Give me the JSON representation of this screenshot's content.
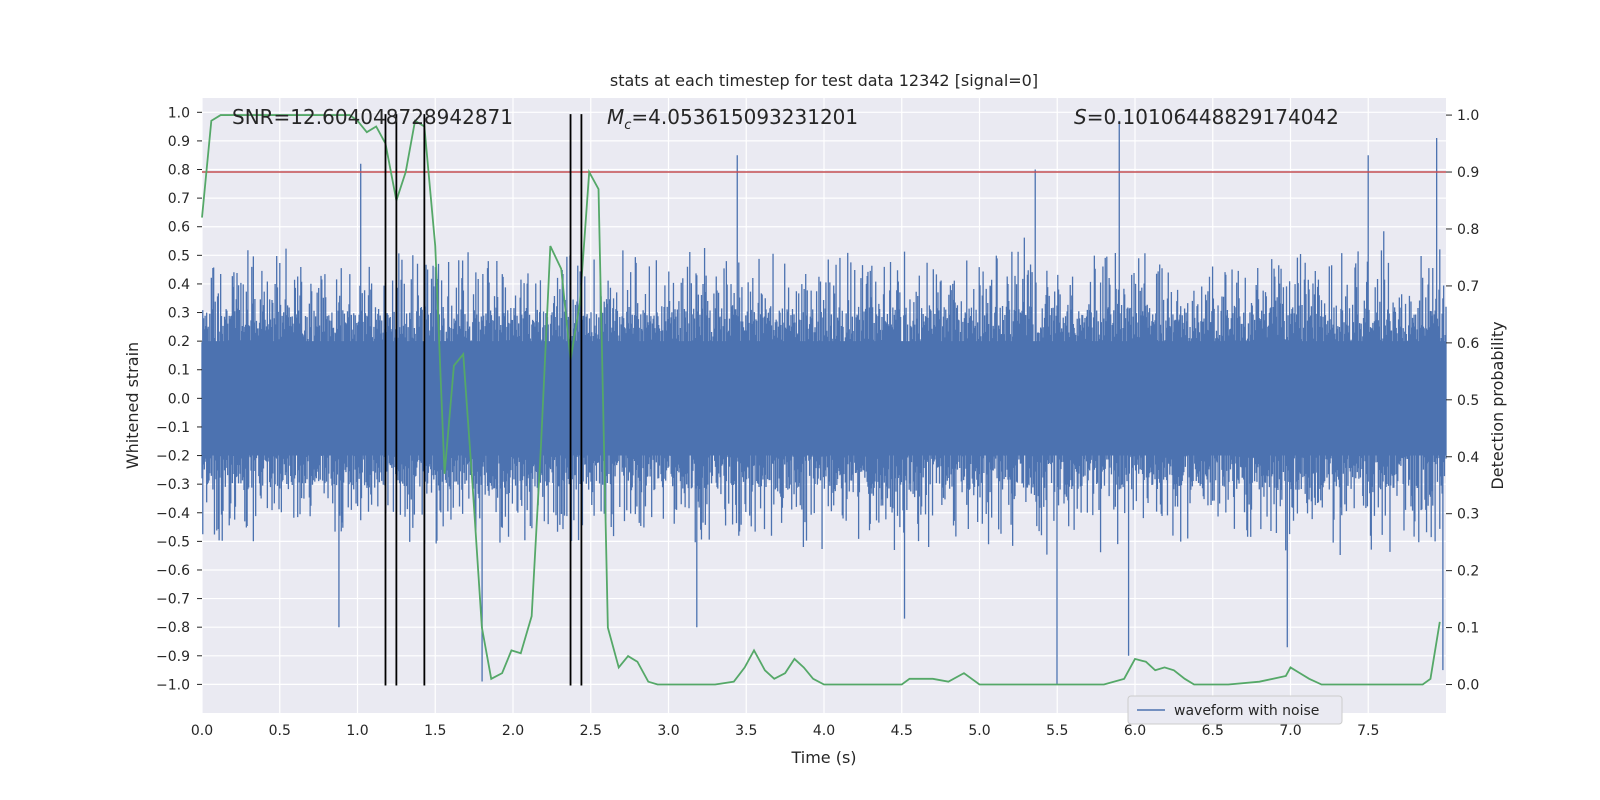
{
  "chart_data": {
    "type": "line",
    "title": "stats at each timestep for test data 12342 [signal=0]",
    "xlabel": "Time (s)",
    "ylabel_left": "Whitened strain",
    "ylabel_right": "Detection probability",
    "xlim": [
      0.0,
      8.0
    ],
    "ylim_left": [
      -1.1,
      1.05
    ],
    "ylim_right": [
      -0.05,
      1.03
    ],
    "grid": true,
    "x_ticks": [
      "0.0",
      "0.5",
      "1.0",
      "1.5",
      "2.0",
      "2.5",
      "3.0",
      "3.5",
      "4.0",
      "4.5",
      "5.0",
      "5.5",
      "6.0",
      "6.5",
      "7.0",
      "7.5"
    ],
    "x_tick_values": [
      0.0,
      0.5,
      1.0,
      1.5,
      2.0,
      2.5,
      3.0,
      3.5,
      4.0,
      4.5,
      5.0,
      5.5,
      6.0,
      6.5,
      7.0,
      7.5
    ],
    "y_left_ticks": [
      "1.0",
      "0.9",
      "0.8",
      "0.7",
      "0.6",
      "0.5",
      "0.4",
      "0.3",
      "0.2",
      "0.1",
      "0.0",
      "-0.1",
      "-0.2",
      "-0.3",
      "-0.4",
      "-0.5",
      "-0.6",
      "-0.7",
      "-0.8",
      "-0.9",
      "-1.0"
    ],
    "y_left_tick_values": [
      1.0,
      0.9,
      0.8,
      0.7,
      0.6,
      0.5,
      0.4,
      0.3,
      0.2,
      0.1,
      0.0,
      -0.1,
      -0.2,
      -0.3,
      -0.4,
      -0.5,
      -0.6,
      -0.7,
      -0.8,
      -0.9,
      -1.0
    ],
    "y_left_tick_labels_display": [
      "1.0",
      "0.9",
      "0.8",
      "0.7",
      "0.6",
      "0.5",
      "0.4",
      "0.3",
      "0.2",
      "0.1",
      "0.0",
      "−0.1",
      "−0.2",
      "−0.3",
      "−0.4",
      "−0.5",
      "−0.6",
      "−0.7",
      "−0.8",
      "−0.9",
      "−1.0"
    ],
    "y_right_ticks": [
      "1.0",
      "0.9",
      "0.8",
      "0.7",
      "0.6",
      "0.5",
      "0.4",
      "0.3",
      "0.2",
      "0.1",
      "0.0"
    ],
    "y_right_tick_values": [
      1.0,
      0.9,
      0.8,
      0.7,
      0.6,
      0.5,
      0.4,
      0.3,
      0.2,
      0.1,
      0.0
    ],
    "annotations": {
      "snr": "SNR=12.604048728942871",
      "mc_symbol": "M",
      "mc_subscript": "c",
      "mc_value": "=4.053615093231201",
      "s_symbol": "S",
      "s_value": "=0.10106448829174042"
    },
    "legend": {
      "label": "waveform with noise",
      "placement": "lower-right"
    },
    "threshold": {
      "value": 0.9,
      "axis": "right",
      "color": "#c44e52"
    },
    "vertical_markers": [
      1.18,
      1.25,
      1.43,
      2.37,
      2.44
    ],
    "series": [
      {
        "name": "waveform with noise",
        "axis": "left",
        "color": "#4c72b0",
        "generator": "noise",
        "samples": 1600,
        "spikes": [
          {
            "x": 1.02,
            "y": 0.82
          },
          {
            "x": 3.44,
            "y": 0.85
          },
          {
            "x": 5.36,
            "y": 0.8
          },
          {
            "x": 5.9,
            "y": 0.97
          },
          {
            "x": 7.94,
            "y": 0.91
          },
          {
            "x": 7.5,
            "y": 0.85
          },
          {
            "x": 0.88,
            "y": -0.8
          },
          {
            "x": 1.8,
            "y": -0.99
          },
          {
            "x": 5.5,
            "y": -1.0
          },
          {
            "x": 6.98,
            "y": -0.87
          },
          {
            "x": 5.96,
            "y": -0.9
          },
          {
            "x": 3.18,
            "y": -0.8
          },
          {
            "x": 4.52,
            "y": -0.77
          },
          {
            "x": 7.98,
            "y": -0.95
          }
        ]
      },
      {
        "name": "detection probability",
        "axis": "right",
        "color": "#55a868",
        "x": [
          0.0,
          0.06,
          0.12,
          0.2,
          0.35,
          0.5,
          0.65,
          0.8,
          0.95,
          1.0,
          1.06,
          1.12,
          1.18,
          1.25,
          1.31,
          1.37,
          1.43,
          1.5,
          1.56,
          1.62,
          1.68,
          1.74,
          1.8,
          1.86,
          1.93,
          1.99,
          2.05,
          2.12,
          2.18,
          2.24,
          2.31,
          2.37,
          2.43,
          2.49,
          2.55,
          2.61,
          2.68,
          2.74,
          2.8,
          2.87,
          2.93,
          3.0,
          3.1,
          3.2,
          3.3,
          3.42,
          3.49,
          3.55,
          3.62,
          3.68,
          3.75,
          3.81,
          3.87,
          3.93,
          4.0,
          4.1,
          4.2,
          4.3,
          4.4,
          4.5,
          4.55,
          4.7,
          4.8,
          4.9,
          5.0,
          5.2,
          5.4,
          5.6,
          5.8,
          5.93,
          6.0,
          6.07,
          6.13,
          6.19,
          6.25,
          6.32,
          6.38,
          6.5,
          6.6,
          6.8,
          6.97,
          7.0,
          7.06,
          7.12,
          7.2,
          7.4,
          7.6,
          7.75,
          7.85,
          7.9,
          7.96
        ],
        "y": [
          0.82,
          0.99,
          1.0,
          1.0,
          1.0,
          1.0,
          1.0,
          1.0,
          1.0,
          0.99,
          0.97,
          0.98,
          0.95,
          0.85,
          0.9,
          0.99,
          0.98,
          0.77,
          0.37,
          0.56,
          0.58,
          0.35,
          0.1,
          0.01,
          0.02,
          0.06,
          0.055,
          0.12,
          0.42,
          0.77,
          0.73,
          0.57,
          0.67,
          0.9,
          0.87,
          0.1,
          0.03,
          0.05,
          0.04,
          0.005,
          0.0,
          0.0,
          0.0,
          0.0,
          0.0,
          0.005,
          0.03,
          0.06,
          0.025,
          0.01,
          0.02,
          0.045,
          0.03,
          0.01,
          0.0,
          0.0,
          0.0,
          0.0,
          0.0,
          0.0,
          0.01,
          0.01,
          0.005,
          0.02,
          0.0,
          0.0,
          0.0,
          0.0,
          0.0,
          0.01,
          0.045,
          0.04,
          0.025,
          0.03,
          0.025,
          0.01,
          0.0,
          0.0,
          0.0,
          0.005,
          0.015,
          0.03,
          0.02,
          0.01,
          0.0,
          0.0,
          0.0,
          0.0,
          0.0,
          0.01,
          0.11
        ]
      }
    ]
  }
}
